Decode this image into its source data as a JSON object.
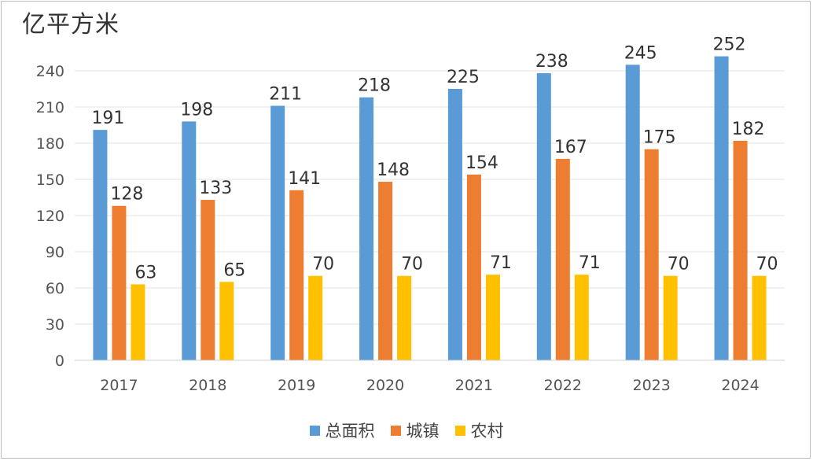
{
  "chart_data": {
    "type": "bar",
    "title": "",
    "unit_label": "亿平方米",
    "xlabel": "",
    "ylabel": "亿平方米",
    "categories": [
      "2017",
      "2018",
      "2019",
      "2020",
      "2021",
      "2022",
      "2023",
      "2024"
    ],
    "series": [
      {
        "name": "总面积",
        "color": "#5B9BD5",
        "values": [
          191,
          198,
          211,
          218,
          225,
          238,
          245,
          252
        ]
      },
      {
        "name": "城镇",
        "color": "#ED7D31",
        "values": [
          128,
          133,
          141,
          148,
          154,
          167,
          175,
          182
        ]
      },
      {
        "name": "农村",
        "color": "#FFC000",
        "values": [
          63,
          65,
          70,
          70,
          71,
          71,
          70,
          70
        ]
      }
    ],
    "ylim": [
      0,
      240
    ],
    "yticks": [
      "0",
      "30",
      "60",
      "90",
      "120",
      "150",
      "180",
      "210",
      "240"
    ],
    "ytick_values": [
      0,
      30,
      60,
      90,
      120,
      150,
      180,
      210,
      240
    ],
    "grid": true,
    "legend_position": "bottom-center"
  }
}
